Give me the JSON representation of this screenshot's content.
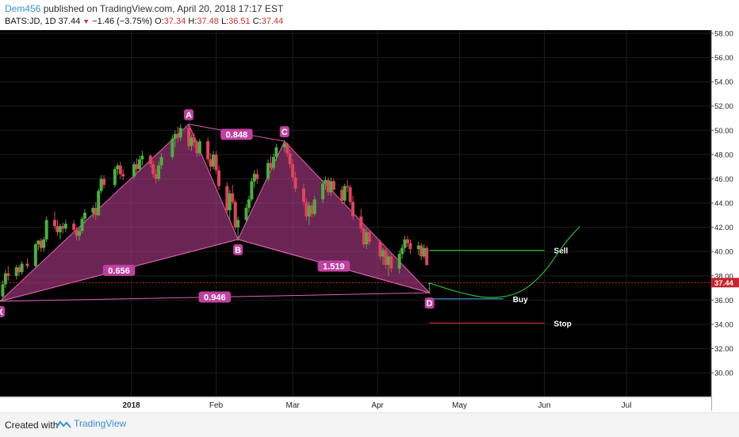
{
  "header": {
    "author": "Dem456",
    "published": "published on TradingView.com, April 20, 2018 17:17 EST",
    "symbol": "BATS:JD, 1D",
    "last": "37.44",
    "change_arrow": "▼",
    "change": "−1.46 (−3.75%)",
    "o_label": "O:",
    "o_value": "37.34",
    "h_label": "H:",
    "h_value": "37.48",
    "l_label": "L:",
    "l_value": "36.51",
    "c_label": "C:",
    "c_value": "37.44"
  },
  "colors": {
    "background": "#000000",
    "grid": "#1e1e1e",
    "up_candle": "#4caf3c",
    "down_candle": "#e0445a",
    "pattern_fill": "#b23d8c",
    "pattern_stroke": "#e060b4",
    "sell": "#2dbb2d",
    "buy": "#3c9bd6",
    "stop": "#c8242f",
    "price_line": "#c8242f",
    "projection": "#2dbb2d"
  },
  "chart_data": {
    "type": "candlestick",
    "symbol": "BATS:JD",
    "interval": "1D",
    "ylim": [
      28.0,
      58.0
    ],
    "y_ticks": [
      "58.00",
      "56.00",
      "54.00",
      "52.00",
      "50.00",
      "48.00",
      "46.00",
      "44.00",
      "42.00",
      "40.00",
      "38.00",
      "36.00",
      "34.00",
      "32.00",
      "30.00"
    ],
    "x_ticks": [
      {
        "label": "2018",
        "date": "2018-01-01"
      },
      {
        "label": "Feb",
        "date": "2018-02-01"
      },
      {
        "label": "Mar",
        "date": "2018-03-01"
      },
      {
        "label": "Apr",
        "date": "2018-04-01"
      },
      {
        "label": "May",
        "date": "2018-05-01"
      },
      {
        "label": "Jun",
        "date": "2018-06-01"
      },
      {
        "label": "Jul",
        "date": "2018-07-01"
      }
    ],
    "x_range": [
      "2017-11-14",
      "2018-08-01"
    ],
    "candles": [
      {
        "d": "2017-11-15",
        "o": 36.3,
        "h": 37.6,
        "l": 35.9,
        "c": 37.3
      },
      {
        "d": "2017-11-16",
        "o": 37.3,
        "h": 38.5,
        "l": 37.0,
        "c": 38.2
      },
      {
        "d": "2017-11-17",
        "o": 38.2,
        "h": 38.8,
        "l": 37.6,
        "c": 38.0
      },
      {
        "d": "2017-11-20",
        "o": 38.0,
        "h": 38.9,
        "l": 37.7,
        "c": 38.7
      },
      {
        "d": "2017-11-21",
        "o": 38.7,
        "h": 38.9,
        "l": 38.0,
        "c": 38.3
      },
      {
        "d": "2017-11-22",
        "o": 38.3,
        "h": 39.2,
        "l": 38.1,
        "c": 39.0
      },
      {
        "d": "2017-11-24",
        "o": 39.0,
        "h": 39.4,
        "l": 38.6,
        "c": 38.8
      },
      {
        "d": "2017-11-27",
        "o": 38.8,
        "h": 40.7,
        "l": 38.6,
        "c": 40.6
      },
      {
        "d": "2017-11-28",
        "o": 40.6,
        "h": 41.0,
        "l": 40.1,
        "c": 40.9
      },
      {
        "d": "2017-11-29",
        "o": 40.9,
        "h": 41.1,
        "l": 40.0,
        "c": 40.3
      },
      {
        "d": "2017-11-30",
        "o": 40.3,
        "h": 41.2,
        "l": 40.0,
        "c": 41.0
      },
      {
        "d": "2017-12-01",
        "o": 41.0,
        "h": 42.9,
        "l": 40.8,
        "c": 42.6
      },
      {
        "d": "2017-12-04",
        "o": 42.6,
        "h": 43.3,
        "l": 41.8,
        "c": 42.1
      },
      {
        "d": "2017-12-05",
        "o": 42.1,
        "h": 42.6,
        "l": 41.3,
        "c": 41.6
      },
      {
        "d": "2017-12-06",
        "o": 41.6,
        "h": 42.3,
        "l": 41.0,
        "c": 42.1
      },
      {
        "d": "2017-12-07",
        "o": 42.1,
        "h": 42.4,
        "l": 41.5,
        "c": 41.9
      },
      {
        "d": "2017-12-08",
        "o": 41.9,
        "h": 42.6,
        "l": 41.6,
        "c": 42.3
      },
      {
        "d": "2017-12-11",
        "o": 42.3,
        "h": 42.6,
        "l": 41.6,
        "c": 41.8
      },
      {
        "d": "2017-12-12",
        "o": 41.8,
        "h": 42.0,
        "l": 40.9,
        "c": 41.3
      },
      {
        "d": "2017-12-13",
        "o": 41.3,
        "h": 41.9,
        "l": 40.9,
        "c": 41.7
      },
      {
        "d": "2017-12-14",
        "o": 41.7,
        "h": 42.9,
        "l": 41.5,
        "c": 42.7
      },
      {
        "d": "2017-12-15",
        "o": 42.7,
        "h": 43.5,
        "l": 42.3,
        "c": 43.2
      },
      {
        "d": "2017-12-18",
        "o": 43.2,
        "h": 43.8,
        "l": 42.8,
        "c": 43.6
      },
      {
        "d": "2017-12-19",
        "o": 43.6,
        "h": 44.1,
        "l": 42.6,
        "c": 43.0
      },
      {
        "d": "2017-12-20",
        "o": 43.0,
        "h": 45.2,
        "l": 42.9,
        "c": 45.0
      },
      {
        "d": "2017-12-21",
        "o": 45.0,
        "h": 46.3,
        "l": 44.8,
        "c": 46.0
      },
      {
        "d": "2017-12-22",
        "o": 46.0,
        "h": 46.3,
        "l": 45.2,
        "c": 45.5
      },
      {
        "d": "2017-12-26",
        "o": 45.5,
        "h": 47.0,
        "l": 45.3,
        "c": 46.8
      },
      {
        "d": "2017-12-27",
        "o": 46.8,
        "h": 47.3,
        "l": 46.3,
        "c": 47.1
      },
      {
        "d": "2017-12-28",
        "o": 47.1,
        "h": 47.4,
        "l": 46.0,
        "c": 46.4
      },
      {
        "d": "2017-12-29",
        "o": 46.4,
        "h": 46.8,
        "l": 45.9,
        "c": 46.2
      },
      {
        "d": "2018-01-02",
        "o": 46.2,
        "h": 47.4,
        "l": 46.0,
        "c": 47.2
      },
      {
        "d": "2018-01-03",
        "o": 47.2,
        "h": 47.7,
        "l": 46.5,
        "c": 46.8
      },
      {
        "d": "2018-01-04",
        "o": 46.8,
        "h": 47.9,
        "l": 46.6,
        "c": 47.6
      },
      {
        "d": "2018-01-05",
        "o": 47.6,
        "h": 48.3,
        "l": 47.1,
        "c": 47.9
      },
      {
        "d": "2018-01-08",
        "o": 47.9,
        "h": 48.0,
        "l": 46.9,
        "c": 47.2
      },
      {
        "d": "2018-01-09",
        "o": 47.2,
        "h": 47.5,
        "l": 46.1,
        "c": 46.4
      },
      {
        "d": "2018-01-10",
        "o": 46.4,
        "h": 46.8,
        "l": 45.6,
        "c": 46.0
      },
      {
        "d": "2018-01-11",
        "o": 46.0,
        "h": 47.4,
        "l": 45.8,
        "c": 47.1
      },
      {
        "d": "2018-01-12",
        "o": 47.1,
        "h": 48.1,
        "l": 46.8,
        "c": 47.8
      },
      {
        "d": "2018-01-16",
        "o": 47.8,
        "h": 49.6,
        "l": 47.6,
        "c": 49.3
      },
      {
        "d": "2018-01-17",
        "o": 49.3,
        "h": 50.0,
        "l": 48.6,
        "c": 49.7
      },
      {
        "d": "2018-01-18",
        "o": 49.7,
        "h": 50.3,
        "l": 49.0,
        "c": 49.4
      },
      {
        "d": "2018-01-19",
        "o": 49.4,
        "h": 50.5,
        "l": 49.1,
        "c": 50.2
      },
      {
        "d": "2018-01-22",
        "o": 50.2,
        "h": 50.6,
        "l": 48.4,
        "c": 48.7
      },
      {
        "d": "2018-01-23",
        "o": 48.7,
        "h": 49.6,
        "l": 48.3,
        "c": 49.4
      },
      {
        "d": "2018-01-24",
        "o": 49.4,
        "h": 49.8,
        "l": 48.6,
        "c": 49.0
      },
      {
        "d": "2018-01-25",
        "o": 49.0,
        "h": 49.2,
        "l": 47.8,
        "c": 48.1
      },
      {
        "d": "2018-01-26",
        "o": 48.1,
        "h": 49.3,
        "l": 47.9,
        "c": 49.1
      },
      {
        "d": "2018-01-29",
        "o": 49.1,
        "h": 49.4,
        "l": 47.3,
        "c": 47.6
      },
      {
        "d": "2018-01-30",
        "o": 47.6,
        "h": 48.1,
        "l": 46.6,
        "c": 47.0
      },
      {
        "d": "2018-01-31",
        "o": 47.0,
        "h": 48.3,
        "l": 46.8,
        "c": 48.0
      },
      {
        "d": "2018-02-01",
        "o": 48.0,
        "h": 48.3,
        "l": 46.4,
        "c": 46.7
      },
      {
        "d": "2018-02-02",
        "o": 46.7,
        "h": 47.1,
        "l": 45.1,
        "c": 45.4
      },
      {
        "d": "2018-02-05",
        "o": 45.4,
        "h": 45.7,
        "l": 43.1,
        "c": 43.4
      },
      {
        "d": "2018-02-06",
        "o": 43.4,
        "h": 45.1,
        "l": 42.6,
        "c": 44.8
      },
      {
        "d": "2018-02-07",
        "o": 44.8,
        "h": 45.5,
        "l": 43.9,
        "c": 44.1
      },
      {
        "d": "2018-02-08",
        "o": 44.1,
        "h": 44.3,
        "l": 41.8,
        "c": 42.0
      },
      {
        "d": "2018-02-09",
        "o": 42.0,
        "h": 42.9,
        "l": 40.9,
        "c": 42.6
      },
      {
        "d": "2018-02-12",
        "o": 42.6,
        "h": 43.9,
        "l": 42.4,
        "c": 43.6
      },
      {
        "d": "2018-02-13",
        "o": 43.6,
        "h": 44.6,
        "l": 43.2,
        "c": 44.3
      },
      {
        "d": "2018-02-14",
        "o": 44.3,
        "h": 46.1,
        "l": 44.1,
        "c": 45.8
      },
      {
        "d": "2018-02-15",
        "o": 45.8,
        "h": 46.7,
        "l": 45.3,
        "c": 46.4
      },
      {
        "d": "2018-02-16",
        "o": 46.4,
        "h": 46.8,
        "l": 45.6,
        "c": 46.0
      },
      {
        "d": "2018-02-20",
        "o": 46.0,
        "h": 47.6,
        "l": 45.8,
        "c": 47.3
      },
      {
        "d": "2018-02-21",
        "o": 47.3,
        "h": 47.9,
        "l": 46.6,
        "c": 46.9
      },
      {
        "d": "2018-02-22",
        "o": 46.9,
        "h": 48.1,
        "l": 46.7,
        "c": 47.8
      },
      {
        "d": "2018-02-23",
        "o": 47.8,
        "h": 48.9,
        "l": 47.5,
        "c": 48.6
      },
      {
        "d": "2018-02-26",
        "o": 48.6,
        "h": 49.2,
        "l": 48.2,
        "c": 48.9
      },
      {
        "d": "2018-02-27",
        "o": 48.9,
        "h": 49.0,
        "l": 47.8,
        "c": 48.1
      },
      {
        "d": "2018-02-28",
        "o": 48.1,
        "h": 48.4,
        "l": 46.9,
        "c": 47.2
      },
      {
        "d": "2018-03-01",
        "o": 47.2,
        "h": 47.6,
        "l": 45.8,
        "c": 46.1
      },
      {
        "d": "2018-03-02",
        "o": 46.1,
        "h": 46.6,
        "l": 44.9,
        "c": 45.2
      },
      {
        "d": "2018-03-05",
        "o": 45.2,
        "h": 45.6,
        "l": 43.8,
        "c": 44.1
      },
      {
        "d": "2018-03-06",
        "o": 44.1,
        "h": 44.4,
        "l": 42.6,
        "c": 42.9
      },
      {
        "d": "2018-03-07",
        "o": 42.9,
        "h": 44.1,
        "l": 42.2,
        "c": 43.8
      },
      {
        "d": "2018-03-08",
        "o": 43.8,
        "h": 44.0,
        "l": 42.8,
        "c": 43.1
      },
      {
        "d": "2018-03-09",
        "o": 43.1,
        "h": 44.6,
        "l": 42.9,
        "c": 44.3
      },
      {
        "d": "2018-03-12",
        "o": 44.3,
        "h": 45.9,
        "l": 44.0,
        "c": 45.6
      },
      {
        "d": "2018-03-13",
        "o": 45.6,
        "h": 46.2,
        "l": 45.1,
        "c": 45.9
      },
      {
        "d": "2018-03-14",
        "o": 45.9,
        "h": 46.1,
        "l": 44.6,
        "c": 44.9
      },
      {
        "d": "2018-03-15",
        "o": 44.9,
        "h": 46.1,
        "l": 44.6,
        "c": 45.8
      },
      {
        "d": "2018-03-16",
        "o": 45.8,
        "h": 46.0,
        "l": 44.8,
        "c": 45.1
      },
      {
        "d": "2018-03-19",
        "o": 45.1,
        "h": 45.4,
        "l": 43.9,
        "c": 44.2
      },
      {
        "d": "2018-03-20",
        "o": 44.2,
        "h": 45.6,
        "l": 44.0,
        "c": 45.4
      },
      {
        "d": "2018-03-21",
        "o": 45.4,
        "h": 45.9,
        "l": 44.9,
        "c": 45.3
      },
      {
        "d": "2018-03-22",
        "o": 45.3,
        "h": 45.5,
        "l": 43.8,
        "c": 44.1
      },
      {
        "d": "2018-03-23",
        "o": 44.1,
        "h": 44.6,
        "l": 42.6,
        "c": 42.9
      },
      {
        "d": "2018-03-26",
        "o": 42.9,
        "h": 43.5,
        "l": 41.6,
        "c": 41.9
      },
      {
        "d": "2018-03-27",
        "o": 41.9,
        "h": 42.1,
        "l": 40.3,
        "c": 40.6
      },
      {
        "d": "2018-03-28",
        "o": 40.6,
        "h": 41.9,
        "l": 40.2,
        "c": 41.6
      },
      {
        "d": "2018-03-29",
        "o": 41.6,
        "h": 41.8,
        "l": 40.5,
        "c": 40.8
      },
      {
        "d": "2018-04-02",
        "o": 40.8,
        "h": 41.0,
        "l": 39.3,
        "c": 39.6
      },
      {
        "d": "2018-04-03",
        "o": 39.6,
        "h": 40.3,
        "l": 38.9,
        "c": 40.1
      },
      {
        "d": "2018-04-04",
        "o": 40.1,
        "h": 40.4,
        "l": 38.6,
        "c": 38.9
      },
      {
        "d": "2018-04-05",
        "o": 38.9,
        "h": 39.9,
        "l": 38.0,
        "c": 39.6
      },
      {
        "d": "2018-04-06",
        "o": 39.6,
        "h": 39.9,
        "l": 38.3,
        "c": 38.6
      },
      {
        "d": "2018-04-09",
        "o": 38.6,
        "h": 40.1,
        "l": 38.2,
        "c": 39.8
      },
      {
        "d": "2018-04-10",
        "o": 39.8,
        "h": 40.6,
        "l": 39.4,
        "c": 40.3
      },
      {
        "d": "2018-04-11",
        "o": 40.3,
        "h": 41.3,
        "l": 40.0,
        "c": 41.0
      },
      {
        "d": "2018-04-12",
        "o": 41.0,
        "h": 41.3,
        "l": 40.4,
        "c": 40.7
      },
      {
        "d": "2018-04-13",
        "o": 40.7,
        "h": 41.0,
        "l": 39.8,
        "c": 40.2
      },
      {
        "d": "2018-04-16",
        "o": 40.2,
        "h": 40.8,
        "l": 39.7,
        "c": 40.5
      },
      {
        "d": "2018-04-17",
        "o": 40.5,
        "h": 40.7,
        "l": 39.3,
        "c": 39.6
      },
      {
        "d": "2018-04-18",
        "o": 39.6,
        "h": 40.6,
        "l": 39.4,
        "c": 40.3
      },
      {
        "d": "2018-04-19",
        "o": 40.3,
        "h": 40.5,
        "l": 38.8,
        "c": 38.9
      },
      {
        "d": "2018-04-20",
        "o": 37.34,
        "h": 37.48,
        "l": 36.51,
        "c": 37.44
      }
    ],
    "harmonic_pattern": {
      "points": [
        {
          "label": "X",
          "date": "2017-11-14",
          "price": 35.9
        },
        {
          "label": "A",
          "date": "2018-01-22",
          "price": 50.5
        },
        {
          "label": "B",
          "date": "2018-02-09",
          "price": 41.0
        },
        {
          "label": "C",
          "date": "2018-02-26",
          "price": 49.1
        },
        {
          "label": "D",
          "date": "2018-04-20",
          "price": 36.6
        }
      ],
      "ratios": [
        {
          "label": "0.848",
          "from": "A",
          "to": "C"
        },
        {
          "label": "0.656",
          "from": "X",
          "to": "B"
        },
        {
          "label": "1.519",
          "from": "B",
          "to": "D"
        },
        {
          "label": "0.946",
          "from": "X",
          "to": "D"
        }
      ]
    },
    "levels": [
      {
        "label": "Sell",
        "price": 40.1,
        "from": "2018-04-20",
        "to": "2018-06-01"
      },
      {
        "label": "Buy",
        "price": 36.1,
        "from": "2018-04-20",
        "to": "2018-05-17"
      },
      {
        "label": "Stop",
        "price": 34.1,
        "from": "2018-04-20",
        "to": "2018-06-01"
      }
    ],
    "projection_path": [
      {
        "date": "2018-04-20",
        "price": 37.4
      },
      {
        "date": "2018-05-01",
        "price": 36.6
      },
      {
        "date": "2018-05-12",
        "price": 36.1
      },
      {
        "date": "2018-05-23",
        "price": 36.5
      },
      {
        "date": "2018-06-01",
        "price": 38.2
      },
      {
        "date": "2018-06-08",
        "price": 40.6
      },
      {
        "date": "2018-06-14",
        "price": 42.1
      }
    ],
    "last_price": {
      "value": 37.44,
      "label": "37.44"
    }
  },
  "footer": {
    "created_with": "Created with",
    "brand": "TradingView"
  }
}
